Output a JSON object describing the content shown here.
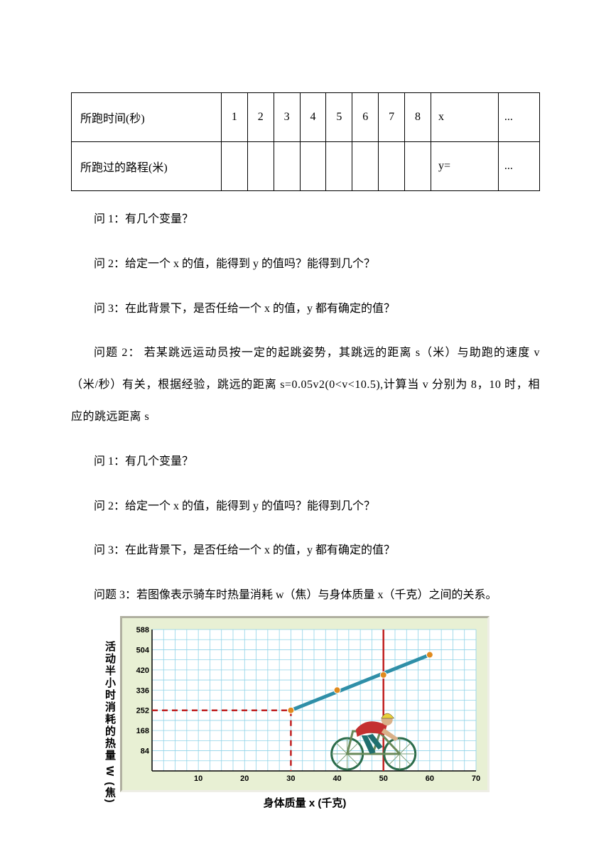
{
  "table": {
    "row1_label": "所跑时间(秒)",
    "row1_cells": [
      "1",
      "2",
      "3",
      "4",
      "5",
      "6",
      "7",
      "8"
    ],
    "row1_x": "x",
    "row1_dots": "...",
    "row2_label": "所跑过的路程(米)",
    "row2_cells": [
      "",
      "",
      "",
      "",
      "",
      "",
      "",
      ""
    ],
    "row2_x": "y=",
    "row2_dots": "..."
  },
  "q1": "问 1：有几个变量？",
  "q2": "问 2：给定一个 x 的值，能得到 y 的值吗？能得到几个？",
  "q3": "问 3：在此背景下，是否任给一个 x 的值，y 都有确定的值？",
  "p2a": "问题 2：  若某跳远运动员按一定的起跳姿势，其跳远的距离 s（米）与助跑的速度 v（米/秒）有关，根据经验，跳远的距离 s=0.05v2(0<v<10.5),计算当 v 分别为 8，10 时，相应的跳远距离 s",
  "q1b": "问 1：有几个变量？",
  "q2b": "问 2：给定一个 x 的值，能得到 y 的值吗？能得到几个？",
  "q3b": "问 3：在此背景下，是否任给一个 x 的值，y 都有确定的值？",
  "p3": "问题 3：若图像表示骑车时热量消耗 w（焦）与身体质量 x（千克）之间的关系。",
  "chart": {
    "ylabel": "活动半小时消耗的热量 W (焦)",
    "xlabel": "身体质量  x (千克)",
    "bg": "#e8f0d4",
    "plot_bg": "#ffffff",
    "grid_color": "#8fd3e8",
    "axis_color": "#000000",
    "line_color": "#2f8fa8",
    "point_color": "#e08a1e",
    "dash_color": "#c02020",
    "yticks": [
      84,
      168,
      252,
      336,
      420,
      504,
      588
    ],
    "xticks": [
      10,
      20,
      30,
      40,
      50,
      60,
      70
    ],
    "points": [
      [
        30,
        252
      ],
      [
        40,
        336
      ],
      [
        50,
        399
      ],
      [
        60,
        483
      ]
    ],
    "dash_y": 252,
    "dash_x": 30,
    "vline_x": 50
  }
}
